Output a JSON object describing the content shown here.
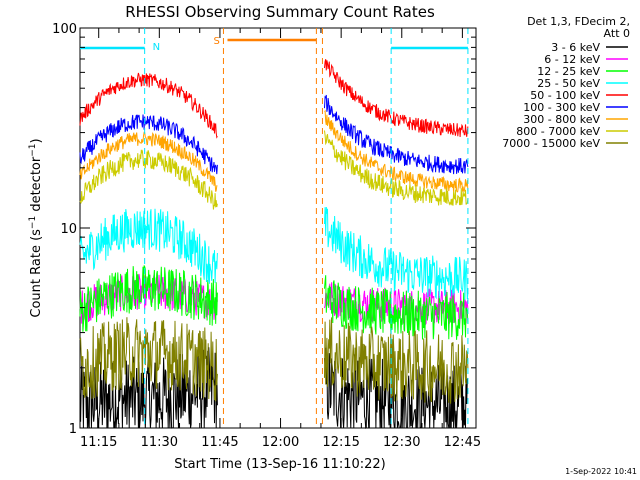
{
  "chart_data": {
    "type": "line",
    "title": "RHESSI Observing Summary Count Rates",
    "xlabel": "Start Time (13-Sep-16 11:10:22)",
    "ylabel_main": "Count Rate (s",
    "ylabel_sup1": "−1",
    "ylabel_mid": " detector",
    "ylabel_sup2": "−1",
    "ylabel_end": ")",
    "x_range_minutes": [
      0,
      98
    ],
    "y_scale": "log",
    "ylim": [
      1,
      100
    ],
    "x_ticks": [
      {
        "label": "11:15",
        "t": 4.63
      },
      {
        "label": "11:30",
        "t": 19.63
      },
      {
        "label": "11:45",
        "t": 34.63
      },
      {
        "label": "12:00",
        "t": 49.63
      },
      {
        "label": "12:15",
        "t": 64.63
      },
      {
        "label": "12:30",
        "t": 79.63
      },
      {
        "label": "12:45",
        "t": 94.63
      }
    ],
    "y_ticks": [
      {
        "label": "1",
        "v": 1
      },
      {
        "label": "10",
        "v": 10
      },
      {
        "label": "100",
        "v": 100
      }
    ],
    "legend_header": [
      "Det 1,3, FDecim 2,",
      "Att 0"
    ],
    "series": [
      {
        "name": "3 - 6 keV",
        "color": "#000000",
        "seg1": [
          1.3,
          1.4,
          1.6
        ],
        "seg2": [
          1.6,
          1.4,
          1.3
        ],
        "noise": 0.35
      },
      {
        "name": "6 - 12 keV",
        "color": "#ff00ff",
        "seg1": [
          4.0,
          4.8,
          4.2
        ],
        "seg2": [
          4.5,
          4.2,
          4.0
        ],
        "noise": 0.15
      },
      {
        "name": "12 - 25 keV",
        "color": "#00ff00",
        "seg1": [
          3.8,
          5.0,
          4.2
        ],
        "seg2": [
          4.5,
          3.8,
          3.6
        ],
        "noise": 0.2
      },
      {
        "name": "25 - 50 keV",
        "color": "#00ffff",
        "seg1": [
          7.0,
          10.0,
          6.0
        ],
        "seg2": [
          10.0,
          6.5,
          5.5
        ],
        "noise": 0.18
      },
      {
        "name": "50 - 100 keV",
        "color": "#ff0000",
        "seg1": [
          35,
          55,
          30
        ],
        "seg2": [
          65,
          38,
          30
        ],
        "noise": 0.06
      },
      {
        "name": "100 - 300 keV",
        "color": "#0000ff",
        "seg1": [
          22,
          34,
          19
        ],
        "seg2": [
          42,
          24,
          20
        ],
        "noise": 0.07
      },
      {
        "name": "300 - 800 keV",
        "color": "#ffa500",
        "seg1": [
          18,
          28,
          16
        ],
        "seg2": [
          35,
          19,
          16
        ],
        "noise": 0.06
      },
      {
        "name": "800 - 7000 keV",
        "color": "#cccc00",
        "seg1": [
          14,
          22,
          13
        ],
        "seg2": [
          28,
          15,
          14
        ],
        "noise": 0.08
      },
      {
        "name": "7000 - 15000 keV",
        "color": "#808000",
        "seg1": [
          2.0,
          2.4,
          2.0
        ],
        "seg2": [
          2.4,
          2.1,
          2.0
        ],
        "noise": 0.3
      }
    ],
    "data_segments": [
      {
        "start": 0,
        "end": 34
      },
      {
        "start": 60.5,
        "end": 96
      }
    ],
    "flags": {
      "night_label": "N",
      "saa_label": "S",
      "night_color": "#00e5ff",
      "saa_color": "#ff7f00",
      "night_bars": [
        {
          "start": 0,
          "end": 16
        },
        {
          "start": 77,
          "end": 96
        }
      ],
      "night_boundaries": [
        16,
        77,
        96
      ],
      "saa_bar": {
        "start": 36.5,
        "end": 58.5
      },
      "saa_boundaries": [
        35.5,
        58.5,
        60
      ]
    },
    "timestamp": "1-Sep-2022 10:41"
  }
}
